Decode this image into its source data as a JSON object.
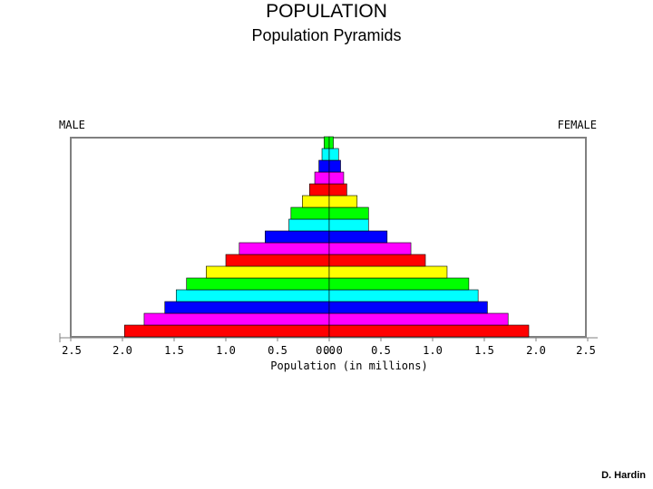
{
  "slide": {
    "title": "POPULATION",
    "subtitle": "Population Pyramids",
    "credit": "D. Hardin"
  },
  "chart_data": {
    "type": "bar",
    "orientation": "horizontal-pyramid",
    "left_label": "MALE",
    "right_label": "FEMALE",
    "xlabel": "Population (in millions)",
    "xlim": [
      0,
      2.5
    ],
    "x_ticks": [
      "2.5",
      "2.0",
      "1.5",
      "1.0",
      "0.5",
      "0.0",
      "0.0",
      "0.5",
      "1.0",
      "1.5",
      "2.0",
      "2.5"
    ],
    "bar_colors": [
      "#ff0000",
      "#ff00ff",
      "#0000ff",
      "#00ffff",
      "#00ff00",
      "#ffff00",
      "#ff0000",
      "#ff00ff",
      "#0000ff",
      "#00ffff",
      "#00ff00",
      "#ffff00",
      "#ff0000",
      "#ff00ff",
      "#0000ff",
      "#00ffff",
      "#00ff00"
    ],
    "series": [
      {
        "name": "MALE",
        "values": [
          1.98,
          1.79,
          1.59,
          1.48,
          1.38,
          1.19,
          1.0,
          0.87,
          0.62,
          0.39,
          0.37,
          0.26,
          0.19,
          0.14,
          0.1,
          0.07,
          0.05
        ]
      },
      {
        "name": "FEMALE",
        "values": [
          1.93,
          1.73,
          1.53,
          1.44,
          1.35,
          1.14,
          0.93,
          0.79,
          0.56,
          0.38,
          0.38,
          0.27,
          0.17,
          0.14,
          0.11,
          0.09,
          0.04
        ]
      }
    ],
    "grid": false
  }
}
